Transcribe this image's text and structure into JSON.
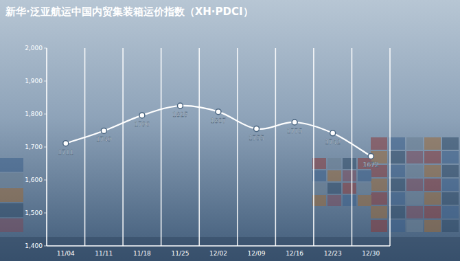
{
  "chart_data": {
    "type": "line",
    "title": "新华·泛亚航运中国内贸集装箱运价指数（XH·PDCI）",
    "categories": [
      "11/04",
      "11/11",
      "11/18",
      "11/25",
      "12/02",
      "12/09",
      "12/16",
      "12/23",
      "12/30"
    ],
    "values": [
      1711,
      1749,
      1796,
      1825,
      1807,
      1755,
      1775,
      1742,
      1672
    ],
    "color": "#ffffff",
    "marker": "circle",
    "line_style": "smooth",
    "ylim": [
      1400,
      2000
    ],
    "yticks": [
      {
        "value": 1400,
        "label": "1,400"
      },
      {
        "value": 1500,
        "label": "1,500"
      },
      {
        "value": 1600,
        "label": "1,600"
      },
      {
        "value": 1700,
        "label": "1,700"
      },
      {
        "value": 1800,
        "label": "1,800"
      },
      {
        "value": 1900,
        "label": "1,900"
      },
      {
        "value": 2000,
        "label": "2,000"
      }
    ],
    "grid": true,
    "data_labels": true
  }
}
